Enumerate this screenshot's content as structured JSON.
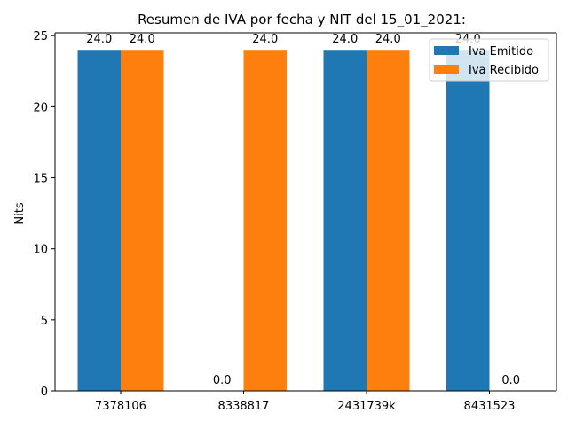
{
  "chart_data": {
    "type": "bar",
    "title": "Resumen de IVA por fecha y NIT del 15_01_2021:",
    "xlabel": "",
    "ylabel": "Nits",
    "categories": [
      "7378106",
      "8338817",
      "2431739k",
      "8431523"
    ],
    "series": [
      {
        "name": "Iva Emitido",
        "values": [
          24.0,
          0.0,
          24.0,
          24.0
        ],
        "color": "#1f77b4"
      },
      {
        "name": "Iva Recibido",
        "values": [
          24.0,
          24.0,
          24.0,
          0.0
        ],
        "color": "#ff7f0e"
      }
    ],
    "ylim": [
      0,
      25.2
    ],
    "yticks": [
      0,
      5,
      10,
      15,
      20,
      25
    ],
    "grid": false,
    "legend_position": "top-right",
    "value_label_format": "1 decimal"
  }
}
